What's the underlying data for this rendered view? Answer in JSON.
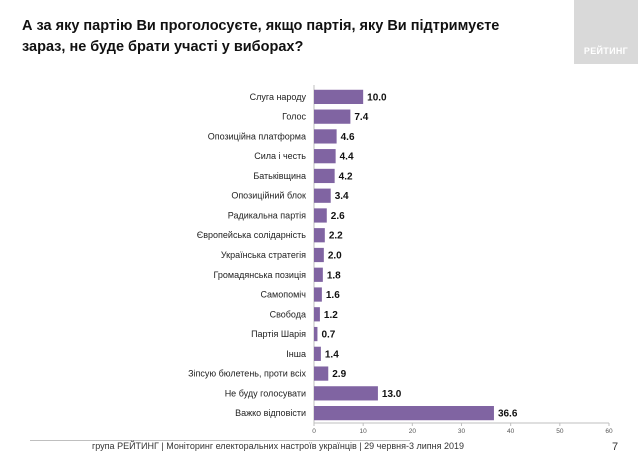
{
  "header": {
    "title": "А за яку партію Ви проголосуєте, якщо партія, яку Ви підтримуєте зараз, не буде брати участі у виборах?",
    "logo_text": "РЕЙТИНГ"
  },
  "chart_data": {
    "type": "bar",
    "orientation": "horizontal",
    "title": "А за яку партію Ви проголосуєте, якщо партія, яку Ви підтримуєте зараз, не буде брати участі у виборах?",
    "categories": [
      "Слуга народу",
      "Голос",
      "Опозиційна платформа",
      "Сила і честь",
      "Батьківщина",
      "Опозиційний блок",
      "Радикальна партія",
      "Європейська солідарність",
      "Українська стратегія",
      "Громадянська позиція",
      "Самопоміч",
      "Свобода",
      "Партія Шарія",
      "Інша",
      "Зіпсую бюлетень, проти всіх",
      "Не буду голосувати",
      "Важко відповісти"
    ],
    "values": [
      10.0,
      7.4,
      4.6,
      4.4,
      4.2,
      3.4,
      2.6,
      2.2,
      2.0,
      1.8,
      1.6,
      1.2,
      0.7,
      1.4,
      2.9,
      13.0,
      36.6
    ],
    "value_labels": [
      "10.0",
      "7.4",
      "4.6",
      "4.4",
      "4.2",
      "3.4",
      "2.6",
      "2.2",
      "2.0",
      "1.8",
      "1.6",
      "1.2",
      "0.7",
      "1.4",
      "2.9",
      "13.0",
      "36.6"
    ],
    "xlim": [
      0,
      60
    ],
    "xticks": [
      "0",
      "10",
      "20",
      "30",
      "40",
      "50",
      "60"
    ],
    "bar_color": "#8064a2",
    "grid": false
  },
  "footer": {
    "text": "група РЕЙТИНГ | Моніторинг електоральних настроїв українців | 29 червня-3 липня 2019",
    "page_number": "7"
  }
}
